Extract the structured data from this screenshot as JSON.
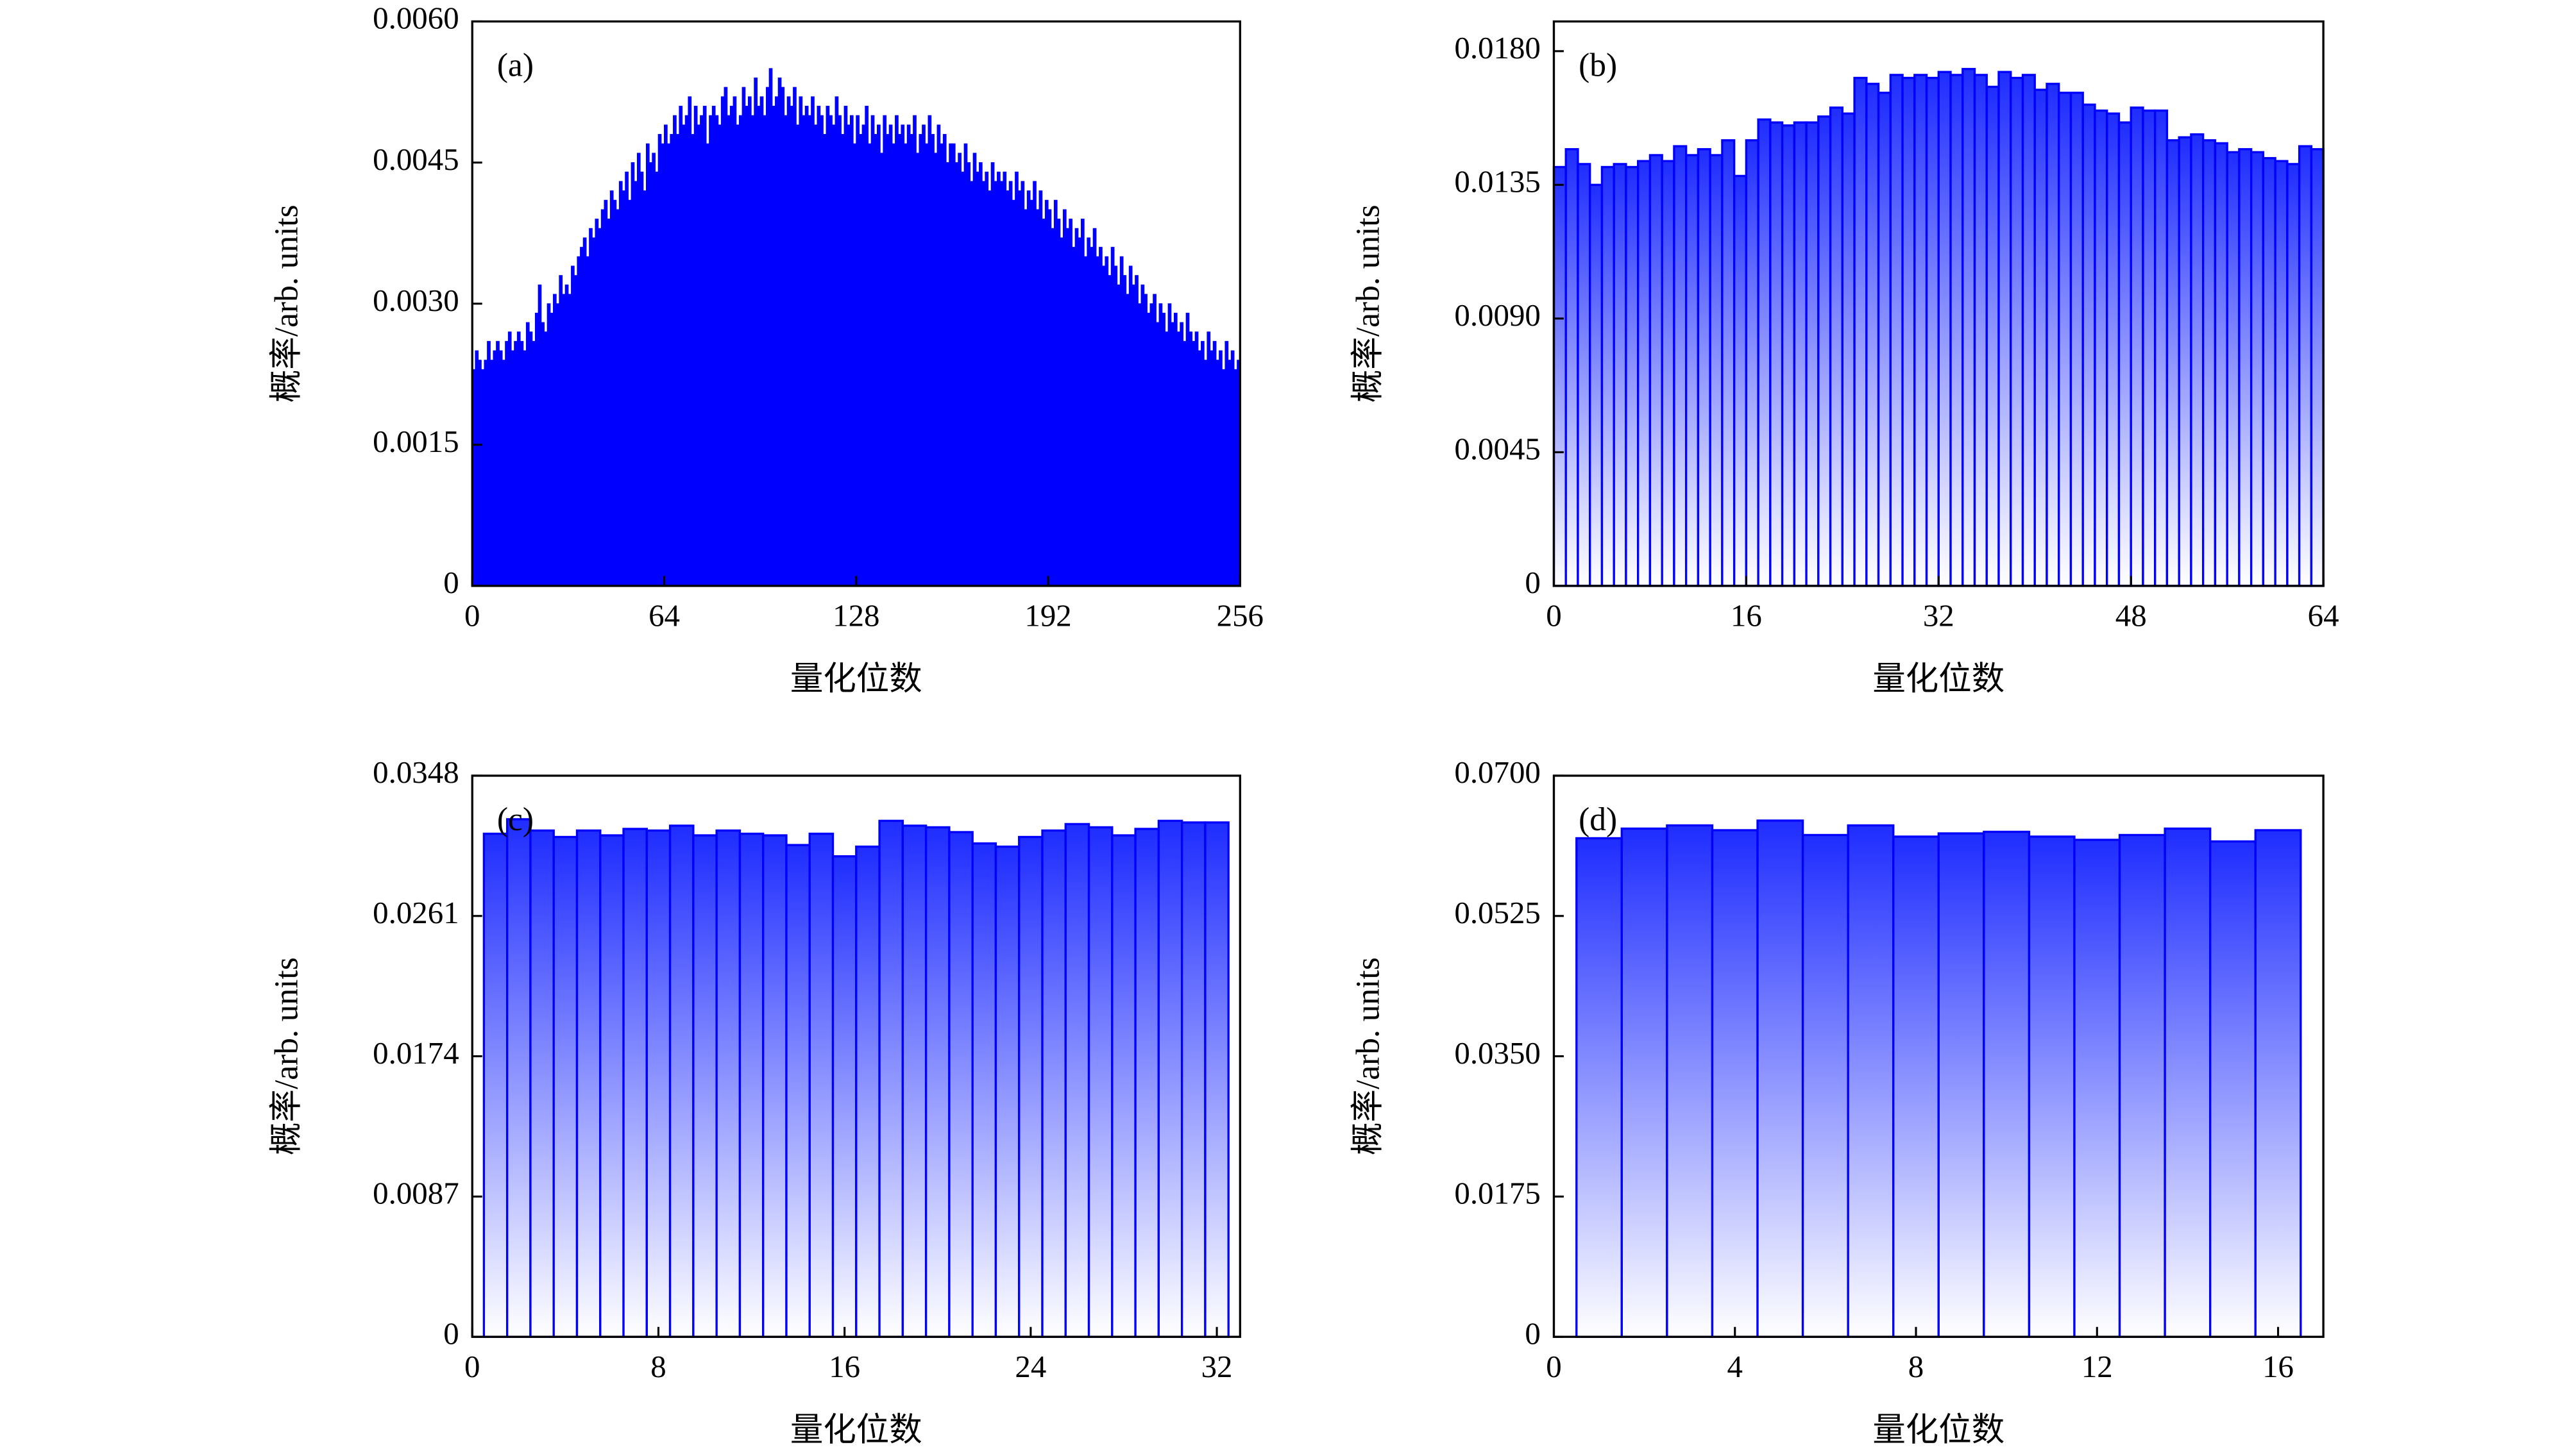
{
  "chart_data": [
    {
      "type": "histogram",
      "panel_label": "(a)",
      "x_label": "量化位数",
      "y_label": "概率/arb. units",
      "color": "#0000ff",
      "gradient": false,
      "bins": [
        0,
        1,
        2,
        3,
        4,
        5,
        6,
        7,
        8,
        9,
        10,
        11,
        12,
        13,
        14,
        15,
        16,
        17,
        18,
        19,
        20,
        21,
        22,
        23,
        24,
        25,
        26,
        27,
        28,
        29,
        30,
        31,
        32,
        33,
        34,
        35,
        36,
        37,
        38,
        39,
        40,
        41,
        42,
        43,
        44,
        45,
        46,
        47,
        48,
        49,
        50,
        51,
        52,
        53,
        54,
        55,
        56,
        57,
        58,
        59,
        60,
        61,
        62,
        63,
        64,
        65,
        66,
        67,
        68,
        69,
        70,
        71,
        72,
        73,
        74,
        75,
        76,
        77,
        78,
        79,
        80,
        81,
        82,
        83,
        84,
        85,
        86,
        87,
        88,
        89,
        90,
        91,
        92,
        93,
        94,
        95,
        96,
        97,
        98,
        99,
        100,
        101,
        102,
        103,
        104,
        105,
        106,
        107,
        108,
        109,
        110,
        111,
        112,
        113,
        114,
        115,
        116,
        117,
        118,
        119,
        120,
        121,
        122,
        123,
        124,
        125,
        126,
        127,
        128,
        129,
        130,
        131,
        132,
        133,
        134,
        135,
        136,
        137,
        138,
        139,
        140,
        141,
        142,
        143,
        144,
        145,
        146,
        147,
        148,
        149,
        150,
        151,
        152,
        153,
        154,
        155,
        156,
        157,
        158,
        159,
        160,
        161,
        162,
        163,
        164,
        165,
        166,
        167,
        168,
        169,
        170,
        171,
        172,
        173,
        174,
        175,
        176,
        177,
        178,
        179,
        180,
        181,
        182,
        183,
        184,
        185,
        186,
        187,
        188,
        189,
        190,
        191,
        192,
        193,
        194,
        195,
        196,
        197,
        198,
        199,
        200,
        201,
        202,
        203,
        204,
        205,
        206,
        207,
        208,
        209,
        210,
        211,
        212,
        213,
        214,
        215,
        216,
        217,
        218,
        219,
        220,
        221,
        222,
        223,
        224,
        225,
        226,
        227,
        228,
        229,
        230,
        231,
        232,
        233,
        234,
        235,
        236,
        237,
        238,
        239,
        240,
        241,
        242,
        243,
        244,
        245,
        246,
        247,
        248,
        249,
        250,
        251,
        252,
        253,
        254,
        255,
        256
      ],
      "values": [
        0.0023,
        0.0025,
        0.0024,
        0.0023,
        0.0024,
        0.0026,
        0.0024,
        0.0025,
        0.0026,
        0.0025,
        0.0024,
        0.0026,
        0.0027,
        0.0025,
        0.0026,
        0.0027,
        0.0026,
        0.0025,
        0.0028,
        0.0027,
        0.0026,
        0.0029,
        0.0032,
        0.0028,
        0.0027,
        0.003,
        0.0029,
        0.0031,
        0.003,
        0.0033,
        0.0031,
        0.0032,
        0.0031,
        0.0034,
        0.0033,
        0.0035,
        0.0036,
        0.0037,
        0.0035,
        0.0038,
        0.0037,
        0.0039,
        0.0038,
        0.004,
        0.0041,
        0.0039,
        0.0042,
        0.0041,
        0.004,
        0.0043,
        0.0042,
        0.0044,
        0.0041,
        0.0045,
        0.0043,
        0.0046,
        0.0044,
        0.0042,
        0.0047,
        0.0045,
        0.0046,
        0.0044,
        0.0048,
        0.0047,
        0.0049,
        0.0047,
        0.0048,
        0.005,
        0.0048,
        0.0051,
        0.0049,
        0.005,
        0.0052,
        0.0048,
        0.0051,
        0.0049,
        0.005,
        0.0051,
        0.0047,
        0.005,
        0.0051,
        0.005,
        0.0049,
        0.0052,
        0.0053,
        0.005,
        0.0051,
        0.0052,
        0.0049,
        0.005,
        0.0053,
        0.0051,
        0.0052,
        0.005,
        0.0054,
        0.0051,
        0.0052,
        0.005,
        0.0053,
        0.0055,
        0.0051,
        0.0052,
        0.0054,
        0.0053,
        0.005,
        0.0052,
        0.0051,
        0.0053,
        0.0049,
        0.0052,
        0.005,
        0.0051,
        0.005,
        0.0052,
        0.0049,
        0.0051,
        0.005,
        0.0048,
        0.0051,
        0.005,
        0.0049,
        0.0052,
        0.005,
        0.0048,
        0.0051,
        0.0049,
        0.005,
        0.0047,
        0.005,
        0.0048,
        0.0049,
        0.0051,
        0.0047,
        0.005,
        0.0048,
        0.0049,
        0.0046,
        0.005,
        0.0048,
        0.0049,
        0.0047,
        0.005,
        0.0048,
        0.0049,
        0.0047,
        0.0049,
        0.0048,
        0.005,
        0.0046,
        0.0048,
        0.0049,
        0.0047,
        0.005,
        0.0048,
        0.0046,
        0.0049,
        0.0047,
        0.0048,
        0.0045,
        0.0047,
        0.0047,
        0.0045,
        0.0046,
        0.0044,
        0.0047,
        0.0045,
        0.0043,
        0.0046,
        0.0044,
        0.0045,
        0.0043,
        0.0044,
        0.0042,
        0.0045,
        0.0043,
        0.0044,
        0.0043,
        0.0044,
        0.0042,
        0.0043,
        0.0041,
        0.0044,
        0.0042,
        0.0043,
        0.004,
        0.0042,
        0.0041,
        0.0043,
        0.004,
        0.0042,
        0.0039,
        0.0041,
        0.004,
        0.0038,
        0.0041,
        0.0039,
        0.0037,
        0.004,
        0.0038,
        0.0039,
        0.0036,
        0.0038,
        0.0037,
        0.0039,
        0.0035,
        0.0037,
        0.0036,
        0.0038,
        0.0035,
        0.0036,
        0.0034,
        0.0035,
        0.0033,
        0.0036,
        0.0034,
        0.0032,
        0.0035,
        0.0033,
        0.0031,
        0.0034,
        0.0032,
        0.0033,
        0.003,
        0.0032,
        0.0031,
        0.0029,
        0.003,
        0.0031,
        0.0028,
        0.003,
        0.0029,
        0.0027,
        0.003,
        0.0028,
        0.0029,
        0.0027,
        0.0028,
        0.0026,
        0.0029,
        0.0027,
        0.0026,
        0.0027,
        0.0025,
        0.0026,
        0.0024,
        0.0027,
        0.0025,
        0.0026,
        0.0024,
        0.0025,
        0.0023,
        0.0026,
        0.0024,
        0.0025,
        0.0023,
        0.0024
      ],
      "xlim": [
        0,
        256
      ],
      "xticks": [
        0,
        64,
        128,
        192,
        256
      ],
      "ylim": [
        0,
        0.006
      ],
      "yticks": [
        0,
        0.0015,
        {
          "value": 0.003,
          "label": "0.0030"
        },
        0.0045,
        {
          "value": 0.006,
          "label": "0.0060"
        }
      ]
    },
    {
      "type": "histogram",
      "panel_label": "(b)",
      "x_label": "量化位数",
      "y_label": "概率/arb. units",
      "color": "#0000ff",
      "gradient": true,
      "bins": [
        0,
        1,
        2,
        3,
        4,
        5,
        6,
        7,
        8,
        9,
        10,
        11,
        12,
        13,
        14,
        15,
        16,
        17,
        18,
        19,
        20,
        21,
        22,
        23,
        24,
        25,
        26,
        27,
        28,
        29,
        30,
        31,
        32,
        33,
        34,
        35,
        36,
        37,
        38,
        39,
        40,
        41,
        42,
        43,
        44,
        45,
        46,
        47,
        48,
        49,
        50,
        51,
        52,
        53,
        54,
        55,
        56,
        57,
        58,
        59,
        60,
        61,
        62,
        63,
        64
      ],
      "values": [
        0.0141,
        0.0147,
        0.0142,
        0.0135,
        0.0141,
        0.0142,
        0.0141,
        0.0143,
        0.0145,
        0.0143,
        0.0148,
        0.0145,
        0.0147,
        0.0145,
        0.015,
        0.0138,
        0.015,
        0.0157,
        0.0156,
        0.0155,
        0.0156,
        0.0156,
        0.0158,
        0.0161,
        0.0159,
        0.0171,
        0.0169,
        0.0166,
        0.0172,
        0.0171,
        0.0172,
        0.0171,
        0.0173,
        0.0172,
        0.0174,
        0.0172,
        0.0168,
        0.0173,
        0.0171,
        0.0172,
        0.0167,
        0.0169,
        0.0166,
        0.0166,
        0.0162,
        0.016,
        0.0159,
        0.0156,
        0.0161,
        0.016,
        0.016,
        0.015,
        0.0151,
        0.0152,
        0.015,
        0.0149,
        0.0146,
        0.0147,
        0.0146,
        0.0144,
        0.0143,
        0.0142,
        0.0148,
        0.0147
      ],
      "xlim": [
        0,
        64
      ],
      "xticks": [
        0,
        16,
        32,
        48,
        64
      ],
      "ylim": [
        0,
        0.019
      ],
      "yticks": [
        0,
        0.0045,
        {
          "value": 0.009,
          "label": "0.0090"
        },
        0.0135,
        {
          "value": 0.018,
          "label": "0.0180"
        }
      ]
    },
    {
      "type": "histogram",
      "panel_label": "(c)",
      "x_label": "量化位数",
      "y_label": "概率/arb. units",
      "color": "#0000ff",
      "gradient": true,
      "bins": [
        0.5,
        1.5,
        2.5,
        3.5,
        4.5,
        5.5,
        6.5,
        7.5,
        8.5,
        9.5,
        10.5,
        11.5,
        12.5,
        13.5,
        14.5,
        15.5,
        16.5,
        17.5,
        18.5,
        19.5,
        20.5,
        21.5,
        22.5,
        23.5,
        24.5,
        25.5,
        26.5,
        27.5,
        28.5,
        29.5,
        30.5,
        31.5,
        32.5
      ],
      "values": [
        0.0312,
        0.0321,
        0.0314,
        0.031,
        0.0314,
        0.0311,
        0.0315,
        0.0314,
        0.0317,
        0.0311,
        0.0314,
        0.0312,
        0.0311,
        0.0305,
        0.0312,
        0.0298,
        0.0304,
        0.032,
        0.0317,
        0.0316,
        0.0313,
        0.0306,
        0.0304,
        0.031,
        0.0314,
        0.0318,
        0.0316,
        0.0311,
        0.0315,
        0.032,
        0.0319,
        0.0319
      ],
      "xlim": [
        0,
        33
      ],
      "xticks": [
        0,
        8,
        16,
        24,
        32
      ],
      "ylim": [
        0,
        0.0348
      ],
      "yticks": [
        0,
        0.0087,
        0.0174,
        0.0261,
        0.0348
      ]
    },
    {
      "type": "histogram",
      "panel_label": "(d)",
      "x_label": "量化位数",
      "y_label": "概率/arb. units",
      "color": "#0000ff",
      "gradient": true,
      "bins": [
        0.5,
        1.5,
        2.5,
        3.5,
        4.5,
        5.5,
        6.5,
        7.5,
        8.5,
        9.5,
        10.5,
        11.5,
        12.5,
        13.5,
        14.5,
        15.5,
        16.5
      ],
      "values": [
        0.0622,
        0.0634,
        0.0638,
        0.0632,
        0.0644,
        0.0626,
        0.0638,
        0.0624,
        0.0628,
        0.063,
        0.0624,
        0.062,
        0.0626,
        0.0634,
        0.0618,
        0.0632
      ],
      "xlim": [
        0,
        17
      ],
      "xticks": [
        0,
        4,
        8,
        12,
        16
      ],
      "ylim": [
        0,
        0.07
      ],
      "yticks": [
        0,
        0.0175,
        {
          "value": 0.035,
          "label": "0.0350"
        },
        0.0525,
        {
          "value": 0.07,
          "label": "0.0700"
        }
      ]
    }
  ]
}
